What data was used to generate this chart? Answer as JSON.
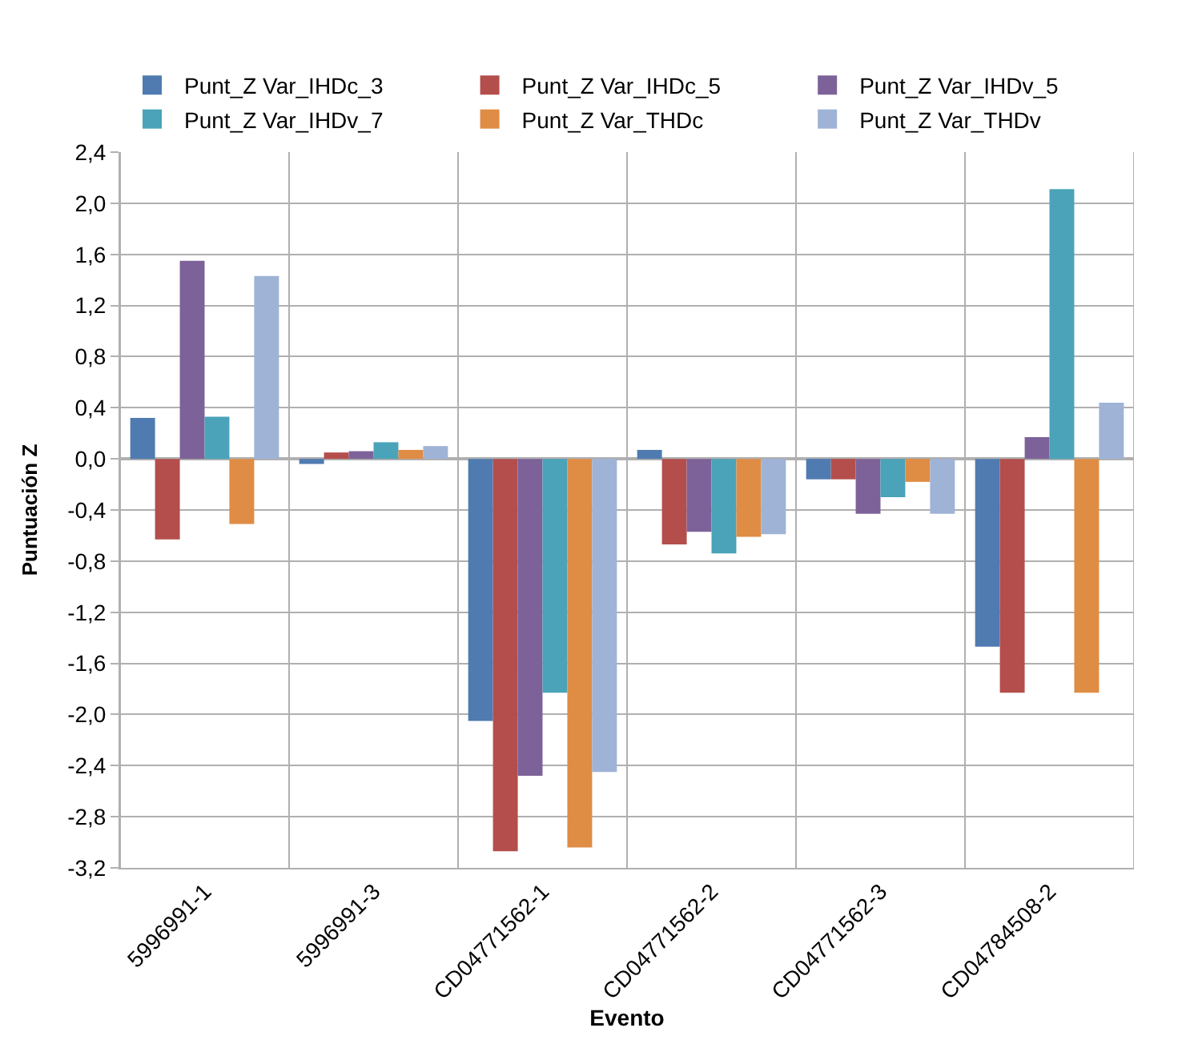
{
  "chart_data": {
    "type": "bar",
    "xlabel": "Evento",
    "ylabel": "Puntuación Z",
    "categories": [
      "5996991-1",
      "5996991-3",
      "CD04771562-1",
      "CD04771562-2",
      "CD04771562-3",
      "CD04784508-2"
    ],
    "series": [
      {
        "name": "Punt_Z Var_IHDc_3",
        "color": "#4f7bb0",
        "values": [
          0.32,
          -0.04,
          -2.05,
          0.07,
          -0.16,
          -1.47
        ]
      },
      {
        "name": "Punt_Z Var_IHDc_5",
        "color": "#b44e4c",
        "values": [
          -0.63,
          0.05,
          -3.07,
          -0.67,
          -0.16,
          -1.83
        ]
      },
      {
        "name": "Punt_Z Var_IHDv_5",
        "color": "#7d6299",
        "values": [
          1.55,
          0.06,
          -2.48,
          -0.57,
          -0.43,
          0.17
        ]
      },
      {
        "name": "Punt_Z Var_IHDv_7",
        "color": "#4aa3b8",
        "values": [
          0.33,
          0.13,
          -1.83,
          -0.74,
          -0.3,
          2.11
        ]
      },
      {
        "name": "Punt_Z Var_THDc",
        "color": "#df8c45",
        "values": [
          -0.51,
          0.07,
          -3.04,
          -0.61,
          -0.18,
          -1.83
        ]
      },
      {
        "name": "Punt_Z Var_THDv",
        "color": "#9eb3d6",
        "values": [
          1.43,
          0.1,
          -2.45,
          -0.59,
          -0.43,
          0.44
        ]
      }
    ],
    "ylim": [
      -3.2,
      2.4
    ],
    "yticks": [
      {
        "value": -3.2,
        "label": "-3,2"
      },
      {
        "value": -2.8,
        "label": "-2,8"
      },
      {
        "value": -2.4,
        "label": "-2,4"
      },
      {
        "value": -2.0,
        "label": "-2,0"
      },
      {
        "value": -1.6,
        "label": "-1,6"
      },
      {
        "value": -1.2,
        "label": "-1,2"
      },
      {
        "value": -0.8,
        "label": "-0,8"
      },
      {
        "value": -0.4,
        "label": "-0,4"
      },
      {
        "value": 0,
        "label": "0,0"
      },
      {
        "value": 0.4,
        "label": "0,4"
      },
      {
        "value": 0.8,
        "label": "0,8"
      },
      {
        "value": 1.2,
        "label": "1,2"
      },
      {
        "value": 1.6,
        "label": "1,6"
      },
      {
        "value": 2.0,
        "label": "2,0"
      },
      {
        "value": 2.4,
        "label": "2,4"
      }
    ],
    "grid": true,
    "legend": "top"
  }
}
